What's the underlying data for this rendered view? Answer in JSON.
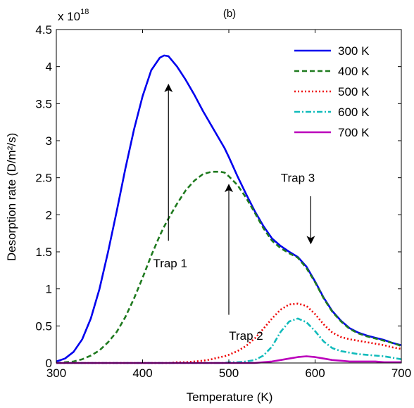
{
  "chart_data": {
    "type": "line",
    "title": "(b)",
    "xlabel": "Temperature (K)",
    "ylabel": "Desorption rate (D/m²/s)",
    "y_multiplier_label": "x 10",
    "y_multiplier_exponent": "18",
    "xlim": [
      300,
      700
    ],
    "ylim": [
      0,
      4.5
    ],
    "x_ticks": [
      300,
      400,
      500,
      600,
      700
    ],
    "x_tick_labels": [
      "300",
      "400",
      "500",
      "600",
      "700"
    ],
    "y_ticks": [
      0,
      0.5,
      1,
      1.5,
      2,
      2.5,
      3,
      3.5,
      4,
      4.5
    ],
    "y_tick_labels": [
      "0",
      "0.5",
      "1",
      "1.5",
      "2",
      "2.5",
      "3",
      "3.5",
      "4",
      "4.5"
    ],
    "grid": false,
    "legend_position": "top-right",
    "x": [
      300,
      310,
      320,
      330,
      340,
      350,
      360,
      370,
      380,
      390,
      400,
      410,
      420,
      425,
      430,
      440,
      450,
      460,
      470,
      480,
      490,
      495,
      500,
      510,
      520,
      530,
      540,
      550,
      560,
      570,
      580,
      590,
      600,
      610,
      620,
      630,
      640,
      650,
      660,
      670,
      680,
      690,
      700
    ],
    "series": [
      {
        "name": "300 K",
        "color": "#0000ee",
        "dash": "solid",
        "values": [
          0.02,
          0.06,
          0.15,
          0.32,
          0.6,
          1.0,
          1.5,
          2.05,
          2.62,
          3.15,
          3.6,
          3.95,
          4.12,
          4.15,
          4.14,
          4.0,
          3.82,
          3.62,
          3.4,
          3.2,
          3.0,
          2.9,
          2.78,
          2.52,
          2.28,
          2.05,
          1.85,
          1.68,
          1.58,
          1.5,
          1.43,
          1.3,
          1.1,
          0.88,
          0.7,
          0.57,
          0.47,
          0.41,
          0.37,
          0.34,
          0.31,
          0.27,
          0.24
        ]
      },
      {
        "name": "400 K",
        "color": "#1f7a1f",
        "dash": "7,4",
        "values": [
          0.0,
          0.01,
          0.02,
          0.05,
          0.1,
          0.17,
          0.28,
          0.42,
          0.62,
          0.87,
          1.15,
          1.45,
          1.72,
          1.84,
          1.95,
          2.15,
          2.33,
          2.46,
          2.55,
          2.58,
          2.58,
          2.57,
          2.52,
          2.4,
          2.23,
          2.03,
          1.82,
          1.65,
          1.55,
          1.48,
          1.42,
          1.28,
          1.09,
          0.87,
          0.69,
          0.56,
          0.46,
          0.4,
          0.36,
          0.33,
          0.3,
          0.27,
          0.23
        ]
      },
      {
        "name": "500 K",
        "color": "#ee0000",
        "dash": "2,3",
        "values": [
          0,
          0,
          0,
          0,
          0,
          0,
          0,
          0,
          0,
          0,
          0,
          0,
          0.0,
          0.0,
          0.0,
          0.01,
          0.01,
          0.02,
          0.03,
          0.05,
          0.08,
          0.09,
          0.11,
          0.16,
          0.23,
          0.33,
          0.46,
          0.6,
          0.72,
          0.79,
          0.8,
          0.77,
          0.66,
          0.52,
          0.41,
          0.35,
          0.32,
          0.3,
          0.28,
          0.26,
          0.24,
          0.21,
          0.19
        ]
      },
      {
        "name": "600 K",
        "color": "#11bbbb",
        "dash": "8,3,2,3",
        "values": [
          0,
          0,
          0,
          0,
          0,
          0,
          0,
          0,
          0,
          0,
          0,
          0,
          0,
          0,
          0,
          0,
          0,
          0,
          0,
          0,
          0.0,
          0.0,
          0.01,
          0.01,
          0.02,
          0.04,
          0.1,
          0.22,
          0.42,
          0.56,
          0.6,
          0.55,
          0.43,
          0.29,
          0.2,
          0.16,
          0.14,
          0.12,
          0.11,
          0.1,
          0.09,
          0.07,
          0.05
        ]
      },
      {
        "name": "700 K",
        "color": "#bb00bb",
        "dash": "solid",
        "values": [
          0,
          0,
          0,
          0,
          0,
          0,
          0,
          0,
          0,
          0,
          0,
          0,
          0,
          0,
          0,
          0,
          0,
          0,
          0,
          0,
          0,
          0,
          0.0,
          0.0,
          0.0,
          0.0,
          0.01,
          0.02,
          0.04,
          0.06,
          0.08,
          0.09,
          0.08,
          0.06,
          0.04,
          0.03,
          0.02,
          0.02,
          0.02,
          0.02,
          0.01,
          0.01,
          0.01
        ]
      }
    ],
    "annotations": [
      {
        "text": "Trap 1",
        "text_x": 432,
        "text_y": 1.35,
        "arrow_from": [
          430,
          1.65
        ],
        "arrow_to": [
          430,
          3.75
        ]
      },
      {
        "text": "Trap 2",
        "text_x": 520,
        "text_y": 0.37,
        "arrow_from": [
          500,
          0.65
        ],
        "arrow_to": [
          500,
          2.4
        ]
      },
      {
        "text": "Trap 3",
        "text_x": 580,
        "text_y": 2.5,
        "arrow_from": [
          595,
          2.25
        ],
        "arrow_to": [
          595,
          1.62
        ]
      }
    ]
  }
}
